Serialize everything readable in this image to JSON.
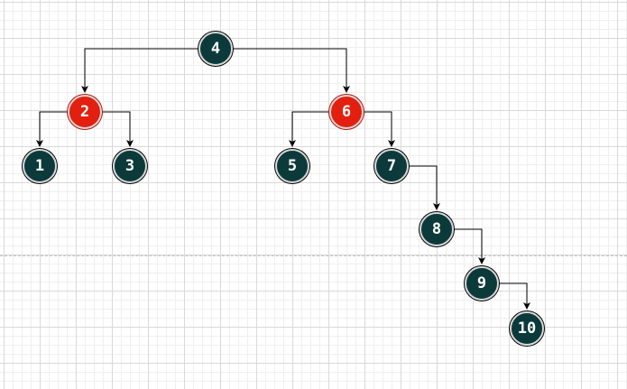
{
  "colors": {
    "black_node": "#0c3a3a",
    "red_node": "#e3200f",
    "edge": "#000000"
  },
  "tree": {
    "nodes": [
      {
        "id": "4",
        "label": "4",
        "color": "black"
      },
      {
        "id": "2",
        "label": "2",
        "color": "red"
      },
      {
        "id": "6",
        "label": "6",
        "color": "red"
      },
      {
        "id": "1",
        "label": "1",
        "color": "black"
      },
      {
        "id": "3",
        "label": "3",
        "color": "black"
      },
      {
        "id": "5",
        "label": "5",
        "color": "black"
      },
      {
        "id": "7",
        "label": "7",
        "color": "black"
      },
      {
        "id": "8",
        "label": "8",
        "color": "black"
      },
      {
        "id": "9",
        "label": "9",
        "color": "black"
      },
      {
        "id": "10",
        "label": "10",
        "color": "black"
      }
    ],
    "edges": [
      {
        "from": "4",
        "to": "2"
      },
      {
        "from": "4",
        "to": "6"
      },
      {
        "from": "2",
        "to": "1"
      },
      {
        "from": "2",
        "to": "3"
      },
      {
        "from": "6",
        "to": "5"
      },
      {
        "from": "6",
        "to": "7"
      },
      {
        "from": "7",
        "to": "8"
      },
      {
        "from": "8",
        "to": "9"
      },
      {
        "from": "9",
        "to": "10"
      }
    ]
  }
}
